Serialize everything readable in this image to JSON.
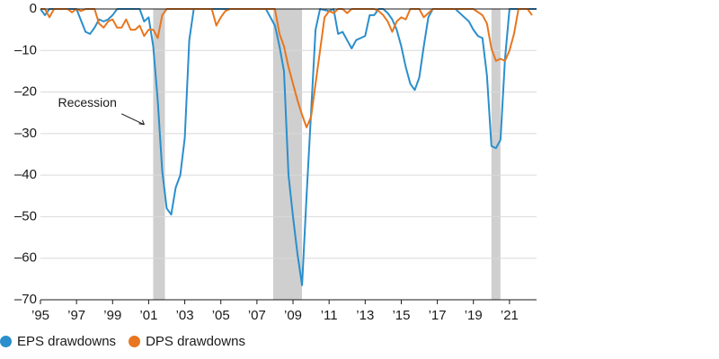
{
  "chart_data": {
    "type": "line",
    "title": "",
    "xlabel": "",
    "ylabel": "",
    "xlim": [
      1995.0,
      2022.5
    ],
    "ylim": [
      -70,
      0
    ],
    "yticks": [
      0,
      -10,
      -20,
      -30,
      -40,
      -50,
      -60,
      -70
    ],
    "xticks": [
      {
        "value": 1995,
        "label": "’95"
      },
      {
        "value": 1997,
        "label": "’97"
      },
      {
        "value": 1999,
        "label": "’99"
      },
      {
        "value": 2001,
        "label": "’01"
      },
      {
        "value": 2003,
        "label": "’03"
      },
      {
        "value": 2005,
        "label": "’05"
      },
      {
        "value": 2007,
        "label": "’07"
      },
      {
        "value": 2009,
        "label": "’09"
      },
      {
        "value": 2011,
        "label": "’11"
      },
      {
        "value": 2013,
        "label": "’13"
      },
      {
        "value": 2015,
        "label": "’15"
      },
      {
        "value": 2017,
        "label": "’17"
      },
      {
        "value": 2019,
        "label": "’19"
      },
      {
        "value": 2021,
        "label": "’21"
      }
    ],
    "grid": "horizontal",
    "recessions": [
      {
        "start": 2001.25,
        "end": 2001.9
      },
      {
        "start": 2007.9,
        "end": 2009.5
      },
      {
        "start": 2020.0,
        "end": 2020.5
      }
    ],
    "annotations": [
      {
        "text": "Recession",
        "x": 1997.6,
        "y": -23.5
      }
    ],
    "legend_position": "bottom-left",
    "series": [
      {
        "name": "EPS drawdowns",
        "color": "#2a8fcc",
        "points": [
          [
            1995.0,
            0
          ],
          [
            1995.25,
            -1.5
          ],
          [
            1995.5,
            0
          ],
          [
            1996.0,
            0
          ],
          [
            1996.5,
            0
          ],
          [
            1997.0,
            0
          ],
          [
            1997.5,
            -5.5
          ],
          [
            1997.75,
            -6
          ],
          [
            1998.0,
            -4.5
          ],
          [
            1998.25,
            -2.5
          ],
          [
            1998.5,
            -3
          ],
          [
            1998.75,
            -2.5
          ],
          [
            1999.0,
            -1.5
          ],
          [
            1999.25,
            0
          ],
          [
            2000.0,
            0
          ],
          [
            2000.5,
            0
          ],
          [
            2000.75,
            -3
          ],
          [
            2001.0,
            -2
          ],
          [
            2001.25,
            -9
          ],
          [
            2001.5,
            -22
          ],
          [
            2001.75,
            -39
          ],
          [
            2002.0,
            -48
          ],
          [
            2002.25,
            -49.5
          ],
          [
            2002.5,
            -43
          ],
          [
            2002.75,
            -40
          ],
          [
            2003.0,
            -31
          ],
          [
            2003.25,
            -7.5
          ],
          [
            2003.5,
            0
          ],
          [
            2007.5,
            0
          ],
          [
            2007.75,
            -2
          ],
          [
            2008.0,
            -4
          ],
          [
            2008.25,
            -9
          ],
          [
            2008.5,
            -15
          ],
          [
            2008.75,
            -40
          ],
          [
            2009.0,
            -50
          ],
          [
            2009.25,
            -59
          ],
          [
            2009.5,
            -66.5
          ],
          [
            2009.75,
            -45
          ],
          [
            2010.0,
            -25
          ],
          [
            2010.25,
            -5
          ],
          [
            2010.5,
            0
          ],
          [
            2011.0,
            -0.5
          ],
          [
            2011.25,
            0
          ],
          [
            2011.5,
            -6
          ],
          [
            2011.75,
            -5.5
          ],
          [
            2012.0,
            -7.5
          ],
          [
            2012.25,
            -9.5
          ],
          [
            2012.5,
            -7.5
          ],
          [
            2012.75,
            -7
          ],
          [
            2013.0,
            -6.5
          ],
          [
            2013.25,
            -1.5
          ],
          [
            2013.5,
            -1.5
          ],
          [
            2013.75,
            0
          ],
          [
            2014.0,
            0
          ],
          [
            2014.25,
            -1
          ],
          [
            2014.5,
            -2.5
          ],
          [
            2014.75,
            -5
          ],
          [
            2015.0,
            -9
          ],
          [
            2015.25,
            -14
          ],
          [
            2015.5,
            -18
          ],
          [
            2015.75,
            -19.5
          ],
          [
            2016.0,
            -16.5
          ],
          [
            2016.25,
            -9
          ],
          [
            2016.5,
            -2
          ],
          [
            2016.75,
            0
          ],
          [
            2018.0,
            0
          ],
          [
            2018.5,
            -2
          ],
          [
            2018.75,
            -3
          ],
          [
            2019.0,
            -5
          ],
          [
            2019.25,
            -6.5
          ],
          [
            2019.5,
            -7
          ],
          [
            2019.75,
            -16
          ],
          [
            2020.0,
            -33
          ],
          [
            2020.25,
            -33.5
          ],
          [
            2020.5,
            -31.5
          ],
          [
            2020.75,
            -12
          ],
          [
            2021.0,
            0
          ],
          [
            2022.5,
            0
          ]
        ]
      },
      {
        "name": "DPS drawdowns",
        "color": "#e8761e",
        "points": [
          [
            1995.0,
            0
          ],
          [
            1995.25,
            0
          ],
          [
            1995.5,
            -2
          ],
          [
            1995.75,
            0
          ],
          [
            1996.5,
            0
          ],
          [
            1996.75,
            -0.8
          ],
          [
            1997.0,
            0
          ],
          [
            1997.25,
            -0.5
          ],
          [
            1997.5,
            0
          ],
          [
            1998.0,
            0
          ],
          [
            1998.25,
            -3.5
          ],
          [
            1998.5,
            -4.5
          ],
          [
            1998.75,
            -3
          ],
          [
            1999.0,
            -2.5
          ],
          [
            1999.25,
            -4.5
          ],
          [
            1999.5,
            -4.5
          ],
          [
            1999.75,
            -2.5
          ],
          [
            2000.0,
            -5
          ],
          [
            2000.25,
            -5
          ],
          [
            2000.5,
            -4
          ],
          [
            2000.75,
            -6.5
          ],
          [
            2001.0,
            -5
          ],
          [
            2001.25,
            -5
          ],
          [
            2001.5,
            -7
          ],
          [
            2001.75,
            -1.5
          ],
          [
            2002.0,
            0
          ],
          [
            2003.5,
            0
          ],
          [
            2004.5,
            0
          ],
          [
            2004.75,
            -4
          ],
          [
            2005.0,
            -2
          ],
          [
            2005.25,
            -0.5
          ],
          [
            2005.5,
            0
          ],
          [
            2008.0,
            0
          ],
          [
            2008.25,
            -6
          ],
          [
            2008.5,
            -9
          ],
          [
            2008.75,
            -14
          ],
          [
            2009.0,
            -18
          ],
          [
            2009.25,
            -22
          ],
          [
            2009.5,
            -25.5
          ],
          [
            2009.75,
            -28.5
          ],
          [
            2010.0,
            -26
          ],
          [
            2010.25,
            -18
          ],
          [
            2010.5,
            -10
          ],
          [
            2010.75,
            -2
          ],
          [
            2011.0,
            -0.5
          ],
          [
            2011.25,
            -1
          ],
          [
            2011.5,
            0
          ],
          [
            2011.75,
            0
          ],
          [
            2012.0,
            -1
          ],
          [
            2012.25,
            0
          ],
          [
            2013.5,
            0
          ],
          [
            2013.75,
            -0.5
          ],
          [
            2014.0,
            -1.5
          ],
          [
            2014.25,
            -3
          ],
          [
            2014.5,
            -5.5
          ],
          [
            2014.75,
            -3
          ],
          [
            2015.0,
            -2
          ],
          [
            2015.25,
            -2.5
          ],
          [
            2015.5,
            0
          ],
          [
            2016.0,
            0
          ],
          [
            2016.25,
            -2
          ],
          [
            2016.5,
            -1
          ],
          [
            2016.75,
            0
          ],
          [
            2019.0,
            0
          ],
          [
            2019.5,
            -1.5
          ],
          [
            2019.75,
            -3.5
          ],
          [
            2020.0,
            -9.5
          ],
          [
            2020.25,
            -12.5
          ],
          [
            2020.5,
            -12
          ],
          [
            2020.75,
            -12.5
          ],
          [
            2021.0,
            -10
          ],
          [
            2021.25,
            -6
          ],
          [
            2021.5,
            0
          ],
          [
            2022.0,
            0
          ],
          [
            2022.25,
            -1.5
          ]
        ]
      }
    ]
  }
}
